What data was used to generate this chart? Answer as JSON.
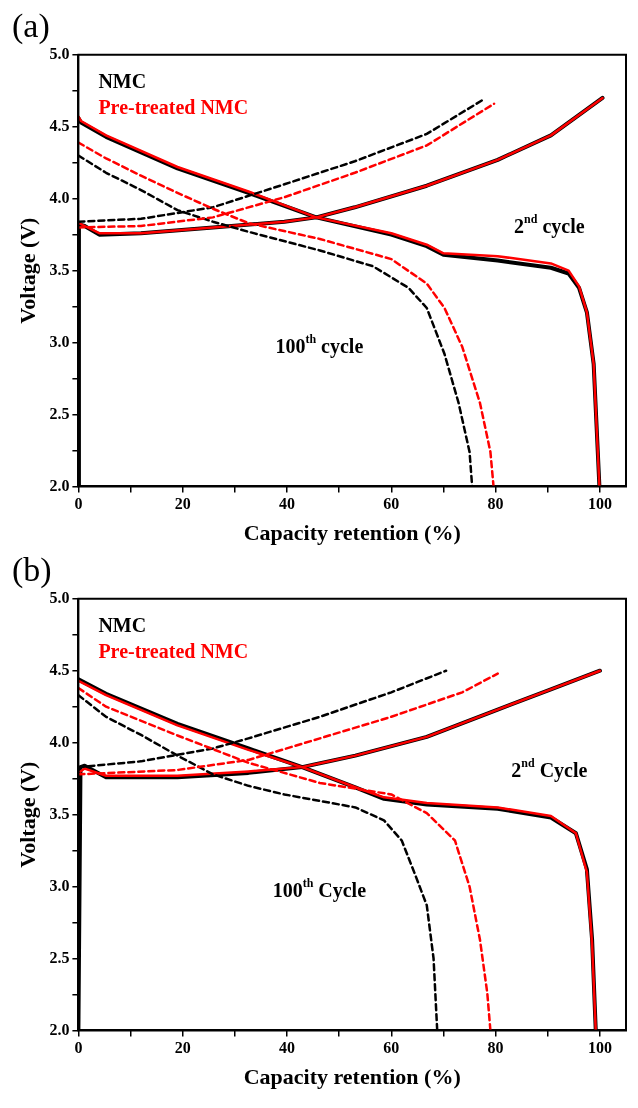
{
  "chart_data": [
    {
      "type": "line",
      "title": "(a)",
      "xlabel": "Capacity retention (%)",
      "ylabel": "Voltage (V)",
      "xlim": [
        0,
        105
      ],
      "ylim": [
        2,
        5
      ],
      "xticks": [
        0,
        {
          "value": 10,
          "label": null
        },
        20,
        {
          "value": 30,
          "label": null
        },
        40,
        {
          "value": 50,
          "label": null
        },
        60,
        {
          "value": 70,
          "label": null
        },
        80,
        {
          "value": 90,
          "label": null
        },
        100
      ],
      "yticks": [
        {
          "value": 2,
          "label": "2.0"
        },
        {
          "value": 2.25,
          "label": null
        },
        {
          "value": 2.5,
          "label": "2.5"
        },
        {
          "value": 2.75,
          "label": null
        },
        {
          "value": 3,
          "label": "3.0"
        },
        {
          "value": 3.25,
          "label": null
        },
        {
          "value": 3.5,
          "label": "3.5"
        },
        {
          "value": 3.75,
          "label": null
        },
        {
          "value": 4,
          "label": "4.0"
        },
        {
          "value": 4.25,
          "label": null
        },
        {
          "value": 4.5,
          "label": "4.5"
        },
        {
          "value": 4.75,
          "label": null
        },
        {
          "value": 5,
          "label": "5.0"
        }
      ],
      "grid": false,
      "legend": "top left",
      "marker": "none",
      "series": [
        {
          "name": "NMC",
          "color": "#000000",
          "line_style": "solid",
          "x": [
            0,
            0.1,
            1.2,
            4,
            12,
            25.8,
            39.5,
            45.6,
            53,
            66.8,
            80.4,
            90.6,
            100.5
          ],
          "values": [
            2.0,
            3.82,
            3.81,
            3.75,
            3.76,
            3.8,
            3.84,
            3.87,
            3.94,
            4.09,
            4.27,
            4.44,
            4.7
          ]
        },
        {
          "color": "#000000",
          "line_style": "solid",
          "x": [
            0,
            0.5,
            5.3,
            19,
            32.6,
            45.6,
            60,
            66.8,
            70,
            80.4,
            90.6,
            94,
            96,
            97.5,
            98.8,
            99.9
          ],
          "values": [
            4.56,
            4.53,
            4.43,
            4.21,
            4.04,
            3.87,
            3.75,
            3.67,
            3.61,
            3.57,
            3.52,
            3.48,
            3.38,
            3.21,
            2.85,
            2.0
          ]
        },
        {
          "name": "Pre-treated NMC",
          "color": "#ff0000",
          "line_style": "solid",
          "x": [
            0.1,
            1.2,
            4,
            12,
            25.8,
            39.5,
            45.6,
            53,
            66.8,
            80.4,
            90.6,
            100.5
          ],
          "values": [
            3.83,
            3.81,
            3.76,
            3.76,
            3.8,
            3.84,
            3.87,
            3.94,
            4.09,
            4.27,
            4.44,
            4.7
          ]
        },
        {
          "color": "#ff0000",
          "line_style": "solid",
          "x": [
            0,
            0.5,
            5.3,
            19,
            32.6,
            45.6,
            60,
            66.8,
            70,
            80.4,
            90.6,
            94,
            96,
            97.5,
            98.8,
            99.9
          ],
          "values": [
            4.57,
            4.54,
            4.44,
            4.22,
            4.05,
            3.87,
            3.76,
            3.68,
            3.62,
            3.6,
            3.55,
            3.5,
            3.39,
            3.21,
            2.85,
            2.0
          ]
        },
        {
          "color": "#000000",
          "line_style": "dashed",
          "x": [
            0,
            12,
            25.8,
            39.5,
            53,
            66.8,
            77.7
          ],
          "values": [
            3.84,
            3.86,
            3.94,
            4.1,
            4.26,
            4.45,
            4.69
          ]
        },
        {
          "color": "#000000",
          "line_style": "dashed",
          "x": [
            0,
            5.3,
            12,
            19,
            25.8,
            32.6,
            46.3,
            56.5,
            63.3,
            66.8,
            70.2,
            72.9,
            75,
            75.5
          ],
          "values": [
            4.3,
            4.18,
            4.06,
            3.92,
            3.84,
            3.77,
            3.64,
            3.53,
            3.38,
            3.24,
            2.92,
            2.58,
            2.24,
            2.0
          ]
        },
        {
          "color": "#ff0000",
          "line_style": "dashed",
          "x": [
            0,
            12,
            25.8,
            39.5,
            53,
            66.8,
            79.7
          ],
          "values": [
            3.8,
            3.81,
            3.87,
            4.01,
            4.18,
            4.37,
            4.66
          ]
        },
        {
          "color": "#ff0000",
          "line_style": "dashed",
          "x": [
            0,
            5.3,
            12,
            19,
            25.8,
            32.6,
            46.3,
            60,
            66.8,
            70.2,
            73.6,
            77,
            79,
            79.6
          ],
          "values": [
            4.39,
            4.28,
            4.16,
            4.04,
            3.93,
            3.83,
            3.72,
            3.58,
            3.41,
            3.24,
            2.97,
            2.58,
            2.24,
            2.0
          ]
        }
      ],
      "annotations": [
        "2$^{nd}$ cycle",
        "100$^{th}$ cycle"
      ]
    },
    {
      "type": "line",
      "title": "(b)",
      "xlabel": "Capacity retention (%)",
      "ylabel": "Voltage (V)",
      "xlim": [
        0,
        105
      ],
      "ylim": [
        2,
        5
      ],
      "xticks": [
        0,
        {
          "value": 10,
          "label": null
        },
        20,
        {
          "value": 30,
          "label": null
        },
        40,
        {
          "value": 50,
          "label": null
        },
        60,
        {
          "value": 70,
          "label": null
        },
        80,
        {
          "value": 90,
          "label": null
        },
        100
      ],
      "yticks": [
        {
          "value": 2,
          "label": "2.0"
        },
        {
          "value": 2.25,
          "label": null
        },
        {
          "value": 2.5,
          "label": "2.5"
        },
        {
          "value": 2.75,
          "label": null
        },
        {
          "value": 3,
          "label": "3.0"
        },
        {
          "value": 3.25,
          "label": null
        },
        {
          "value": 3.5,
          "label": "3.5"
        },
        {
          "value": 3.75,
          "label": null
        },
        {
          "value": 4,
          "label": "4.0"
        },
        {
          "value": 4.25,
          "label": null
        },
        {
          "value": 4.5,
          "label": "4.5"
        },
        {
          "value": 4.75,
          "label": null
        },
        {
          "value": 5,
          "label": "5.0"
        }
      ],
      "grid": false,
      "legend": "top left",
      "marker": "none",
      "series": [
        {
          "name": "NMC",
          "color": "#000000",
          "line_style": "solid",
          "x": [
            0,
            0.4,
            1.2,
            5.3,
            19,
            32.6,
            42.9,
            53.1,
            66.8,
            80.4,
            90.6,
            100
          ],
          "values": [
            2.0,
            3.83,
            3.84,
            3.76,
            3.76,
            3.79,
            3.83,
            3.91,
            4.04,
            4.23,
            4.37,
            4.5
          ]
        },
        {
          "color": "#000000",
          "line_style": "solid",
          "x": [
            0,
            5.3,
            19,
            32.6,
            42.9,
            53.1,
            58.6,
            66.8,
            80.4,
            90.6,
            95.4,
            97.5,
            98.5,
            99.2
          ],
          "values": [
            4.44,
            4.34,
            4.13,
            3.96,
            3.83,
            3.69,
            3.61,
            3.57,
            3.54,
            3.48,
            3.37,
            3.12,
            2.63,
            2.0
          ]
        },
        {
          "name": "Pre-treated NMC",
          "color": "#ff0000",
          "line_style": "solid",
          "x": [
            0.4,
            1.2,
            5.3,
            19,
            32.6,
            42.9,
            53.1,
            66.8,
            80.4,
            90.6,
            100
          ],
          "values": [
            3.8,
            3.82,
            3.77,
            3.77,
            3.8,
            3.83,
            3.91,
            4.04,
            4.23,
            4.37,
            4.5
          ]
        },
        {
          "color": "#ff0000",
          "line_style": "solid",
          "x": [
            0,
            5.3,
            19,
            32.6,
            42.9,
            53.1,
            58.6,
            66.8,
            80.4,
            90.6,
            95.4,
            97.5,
            98.5,
            99.2
          ],
          "values": [
            4.43,
            4.33,
            4.12,
            3.95,
            3.83,
            3.69,
            3.62,
            3.58,
            3.55,
            3.49,
            3.37,
            3.1,
            2.6,
            2.0
          ]
        },
        {
          "color": "#000000",
          "line_style": "dashed",
          "x": [
            0,
            12,
            25.8,
            32.6,
            46.3,
            60,
            70.5
          ],
          "values": [
            3.83,
            3.87,
            3.96,
            4.03,
            4.18,
            4.35,
            4.5
          ]
        },
        {
          "color": "#000000",
          "line_style": "dashed",
          "x": [
            0,
            5.3,
            12.2,
            19,
            25.8,
            32.6,
            39.5,
            53.1,
            58.6,
            62,
            64.7,
            66.8,
            68.1,
            68.8
          ],
          "values": [
            4.33,
            4.18,
            4.05,
            3.91,
            3.78,
            3.7,
            3.64,
            3.55,
            3.46,
            3.32,
            3.07,
            2.87,
            2.5,
            2.0
          ]
        },
        {
          "color": "#ff0000",
          "line_style": "dashed",
          "x": [
            0,
            19,
            32.6,
            46.3,
            60,
            73.6,
            80.4
          ],
          "values": [
            3.78,
            3.81,
            3.88,
            4.03,
            4.18,
            4.35,
            4.48
          ]
        },
        {
          "color": "#ff0000",
          "line_style": "dashed",
          "x": [
            0,
            5.3,
            19,
            32.6,
            46.3,
            60,
            66.8,
            72.2,
            75,
            77,
            78.4,
            79
          ],
          "values": [
            4.38,
            4.25,
            4.05,
            3.86,
            3.72,
            3.64,
            3.51,
            3.32,
            3.0,
            2.63,
            2.26,
            2.0
          ]
        }
      ],
      "annotations": [
        "2$^{nd}$ Cycle",
        "100$^{th}$ Cycle"
      ]
    }
  ]
}
